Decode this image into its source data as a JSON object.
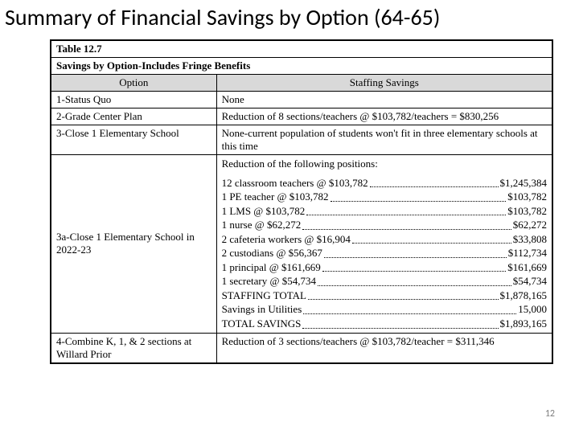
{
  "title": "Summary of Financial Savings by Option (64-65)",
  "table": {
    "number": "Table 12.7",
    "caption": "Savings by Option-Includes Fringe Benefits",
    "headers": {
      "option": "Option",
      "savings": "Staffing Savings"
    },
    "row1": {
      "option": "1-Status Quo",
      "savings": "None"
    },
    "row2": {
      "option": "2-Grade Center Plan",
      "savings": "Reduction of 8 sections/teachers @ $103,782/teachers = $830,256"
    },
    "row3": {
      "option": "3-Close 1 Elementary School",
      "savings": "None-current population of students won't fit in three elementary schools at this time"
    },
    "row3a": {
      "option": "3a-Close 1 Elementary School in 2022-23",
      "intro": "Reduction of the following positions:",
      "items": [
        {
          "lead": "12 classroom teachers @ $103,782",
          "amt": "$1,245,384"
        },
        {
          "lead": "1 PE teacher @ $103,782",
          "amt": "$103,782"
        },
        {
          "lead": "1 LMS @ $103,782",
          "amt": "$103,782"
        },
        {
          "lead": "1 nurse @ $62,272",
          "amt": "$62,272"
        },
        {
          "lead": "2 cafeteria workers @ $16,904",
          "amt": "$33,808"
        },
        {
          "lead": "2 custodians @ $56,367",
          "amt": "$112,734"
        },
        {
          "lead": "1 principal @ $161,669",
          "amt": "$161,669"
        },
        {
          "lead": "1 secretary @ $54,734",
          "amt": "$54,734"
        },
        {
          "lead": "STAFFING TOTAL",
          "amt": "$1,878,165"
        },
        {
          "lead": "Savings in Utilities",
          "amt": "15,000"
        },
        {
          "lead": "TOTAL SAVINGS",
          "amt": "$1,893,165"
        }
      ]
    },
    "row4": {
      "option": "4-Combine K, 1, & 2 sections at Willard Prior",
      "savings": "Reduction of 3 sections/teachers @ $103,782/teacher = $311,346"
    }
  },
  "page_number": "12"
}
